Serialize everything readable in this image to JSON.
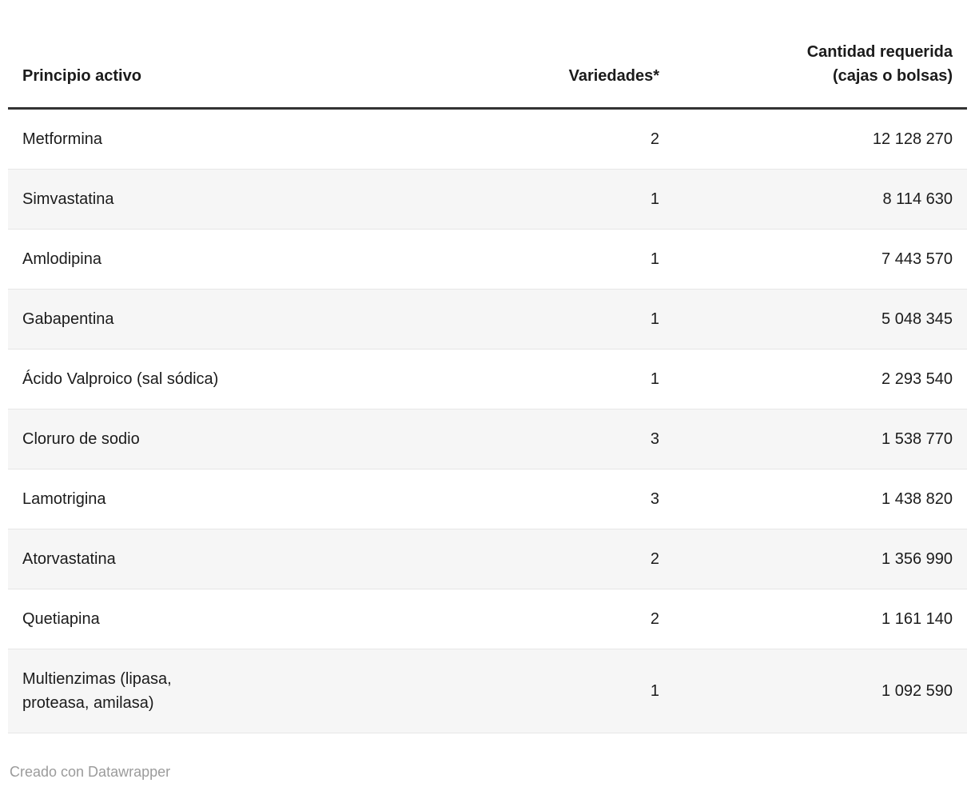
{
  "table": {
    "headers": [
      {
        "label": "Principio activo",
        "align": "left"
      },
      {
        "label": "Variedades*",
        "align": "right"
      },
      {
        "label": "Cantidad requerida\n(cajas o bolsas)",
        "align": "right"
      }
    ],
    "rows": [
      {
        "principio": "Metformina",
        "variedades": "2",
        "cantidad": "12 128 270"
      },
      {
        "principio": "Simvastatina",
        "variedades": "1",
        "cantidad": "8 114 630"
      },
      {
        "principio": "Amlodipina",
        "variedades": "1",
        "cantidad": "7 443 570"
      },
      {
        "principio": "Gabapentina",
        "variedades": "1",
        "cantidad": "5 048 345"
      },
      {
        "principio": "Ácido Valproico (sal sódica)",
        "variedades": "1",
        "cantidad": "2 293 540"
      },
      {
        "principio": "Cloruro de sodio",
        "variedades": "3",
        "cantidad": "1 538 770"
      },
      {
        "principio": "Lamotrigina",
        "variedades": "3",
        "cantidad": "1 438 820"
      },
      {
        "principio": "Atorvastatina",
        "variedades": "2",
        "cantidad": "1 356 990"
      },
      {
        "principio": "Quetiapina",
        "variedades": "2",
        "cantidad": "1 161 140"
      },
      {
        "principio": "Multienzimas (lipasa,\nproteasa, amilasa)",
        "variedades": "1",
        "cantidad": "1 092 590"
      }
    ]
  },
  "footer": {
    "attribution": "Creado con Datawrapper"
  },
  "colors": {
    "text": "#1b1b1b",
    "header_rule": "#333333",
    "stripe": "#f6f6f6",
    "row_border": "#e6e6e6",
    "attribution_text": "#9b9b9b",
    "background": "#ffffff"
  },
  "chart_data": {
    "type": "table",
    "title": "",
    "columns": [
      "Principio activo",
      "Variedades*",
      "Cantidad requerida (cajas o bolsas)"
    ],
    "rows": [
      [
        "Metformina",
        2,
        12128270
      ],
      [
        "Simvastatina",
        1,
        8114630
      ],
      [
        "Amlodipina",
        1,
        7443570
      ],
      [
        "Gabapentina",
        1,
        5048345
      ],
      [
        "Ácido Valproico (sal sódica)",
        1,
        2293540
      ],
      [
        "Cloruro de sodio",
        3,
        1538770
      ],
      [
        "Lamotrigina",
        3,
        1438820
      ],
      [
        "Atorvastatina",
        2,
        1356990
      ],
      [
        "Quetiapina",
        2,
        1161140
      ],
      [
        "Multienzimas (lipasa, proteasa, amilasa)",
        1,
        1092590
      ]
    ],
    "number_format": "space-grouped",
    "striped_rows": true,
    "attribution": "Creado con Datawrapper"
  }
}
